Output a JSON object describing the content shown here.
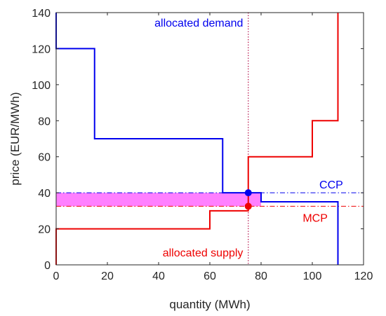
{
  "chart_data": {
    "type": "line",
    "title": "",
    "xlabel": "quantity (MWh)",
    "ylabel": "price (EUR/MWh)",
    "xlim": [
      0,
      120
    ],
    "ylim": [
      0,
      140
    ],
    "xticks": [
      0,
      20,
      40,
      60,
      80,
      100,
      120
    ],
    "yticks": [
      0,
      20,
      40,
      60,
      80,
      100,
      120,
      140
    ],
    "grid": false,
    "series": [
      {
        "role": "demand",
        "color": "#0000ee",
        "x": [
          0,
          0,
          15,
          15,
          65,
          65,
          80,
          80,
          110,
          110
        ],
        "y": [
          140,
          120,
          120,
          70,
          70,
          40,
          40,
          35,
          35,
          0
        ]
      },
      {
        "role": "supply",
        "color": "#ee0000",
        "x": [
          0,
          0,
          60,
          60,
          75,
          75,
          100,
          100,
          110,
          110
        ],
        "y": [
          0,
          20,
          20,
          30,
          30,
          60,
          60,
          80,
          80,
          140
        ]
      }
    ],
    "reference_lines": [
      {
        "kind": "horizontal",
        "value": 40,
        "color": "#0000ee",
        "style": "dash-dot",
        "label": "CCP"
      },
      {
        "kind": "horizontal",
        "value": 32.5,
        "color": "#ee0000",
        "style": "dash-dot",
        "label": "MCP"
      },
      {
        "kind": "vertical",
        "value": 75,
        "color": "#0000ee",
        "style": "dotted",
        "label": "allocated demand"
      },
      {
        "kind": "vertical",
        "value": 75,
        "color": "#ee0000",
        "style": "dotted",
        "label": "allocated supply"
      }
    ],
    "shaded_band": {
      "x": [
        0,
        80
      ],
      "y": [
        32.5,
        40
      ],
      "color": "#ff80ff"
    },
    "points": [
      {
        "x": 75,
        "y": 40,
        "color": "#0000ee"
      },
      {
        "x": 75,
        "y": 32.5,
        "color": "#ee0000"
      }
    ]
  }
}
